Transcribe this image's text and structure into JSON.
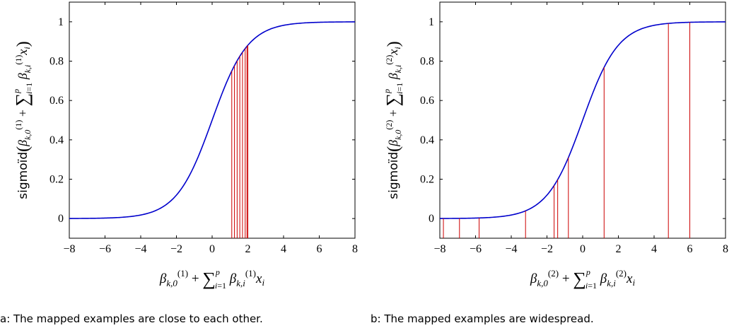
{
  "figure": {
    "caption_a": "a: The mapped examples are close to each other.",
    "caption_b": "b: The mapped examples are widespread."
  },
  "chart_data": [
    {
      "type": "line",
      "function": "sigmoid",
      "xlabel": "β_{k,0}^(1) + ∑_{i=1}^p β_{k,i}^(1) x_i",
      "ylabel": "sigmoïd(β_{k,0}^(1) + ∑_{i=1}^p β_{k,i}^(1) x_i)",
      "xlim": [
        -8,
        8
      ],
      "ylim": [
        -0.1,
        1.1
      ],
      "xticks": [
        "−8",
        "−6",
        "−4",
        "−2",
        "0",
        "2",
        "4",
        "6",
        "8"
      ],
      "yticks": [
        "0",
        "0.2",
        "0.4",
        "0.6",
        "0.8",
        "1"
      ],
      "curve_color": "#0000cc",
      "example_color": "#cc0000",
      "examples_x": [
        1.1,
        1.25,
        1.4,
        1.55,
        1.7,
        1.85,
        1.95,
        2.0
      ]
    },
    {
      "type": "line",
      "function": "sigmoid",
      "xlabel": "β_{k,0}^(2) + ∑_{i=1}^p β_{k,i}^(2) x_i",
      "ylabel": "sigmoïd(β_{k,0}^(2) + ∑_{i=1}^p β_{k,i}^(2) x_i)",
      "xlim": [
        -8,
        8
      ],
      "ylim": [
        -0.1,
        1.1
      ],
      "xticks": [
        "−8",
        "−6",
        "−4",
        "−2",
        "0",
        "2",
        "4",
        "6",
        "8"
      ],
      "yticks": [
        "0",
        "0.2",
        "0.4",
        "0.6",
        "0.8",
        "1"
      ],
      "curve_color": "#0000cc",
      "example_color": "#cc0000",
      "examples_x": [
        -7.8,
        -6.9,
        -5.8,
        -3.2,
        -1.6,
        -1.4,
        -0.8,
        1.2,
        4.8,
        6.0
      ]
    }
  ]
}
